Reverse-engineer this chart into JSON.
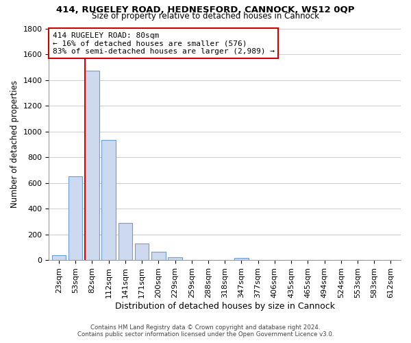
{
  "title": "414, RUGELEY ROAD, HEDNESFORD, CANNOCK, WS12 0QP",
  "subtitle": "Size of property relative to detached houses in Cannock",
  "xlabel": "Distribution of detached houses by size in Cannock",
  "ylabel": "Number of detached properties",
  "bin_labels": [
    "23sqm",
    "53sqm",
    "82sqm",
    "112sqm",
    "141sqm",
    "171sqm",
    "200sqm",
    "229sqm",
    "259sqm",
    "288sqm",
    "318sqm",
    "347sqm",
    "377sqm",
    "406sqm",
    "435sqm",
    "465sqm",
    "494sqm",
    "524sqm",
    "553sqm",
    "583sqm",
    "612sqm"
  ],
  "bar_heights": [
    40,
    650,
    1470,
    935,
    290,
    130,
    65,
    22,
    0,
    0,
    0,
    15,
    0,
    0,
    0,
    0,
    0,
    0,
    0,
    0,
    0
  ],
  "bar_color": "#ccd9ee",
  "bar_edge_color": "#6a9fd8",
  "highlight_bar_index": 2,
  "vline_color": "#dd0000",
  "ylim": [
    0,
    1800
  ],
  "yticks": [
    0,
    200,
    400,
    600,
    800,
    1000,
    1200,
    1400,
    1600,
    1800
  ],
  "annotation_title": "414 RUGELEY ROAD: 80sqm",
  "annotation_line1": "← 16% of detached houses are smaller (576)",
  "annotation_line2": "83% of semi-detached houses are larger (2,989) →",
  "footer_line1": "Contains HM Land Registry data © Crown copyright and database right 2024.",
  "footer_line2": "Contains public sector information licensed under the Open Government Licence v3.0.",
  "grid_color": "#cccccc",
  "background_color": "#ffffff"
}
